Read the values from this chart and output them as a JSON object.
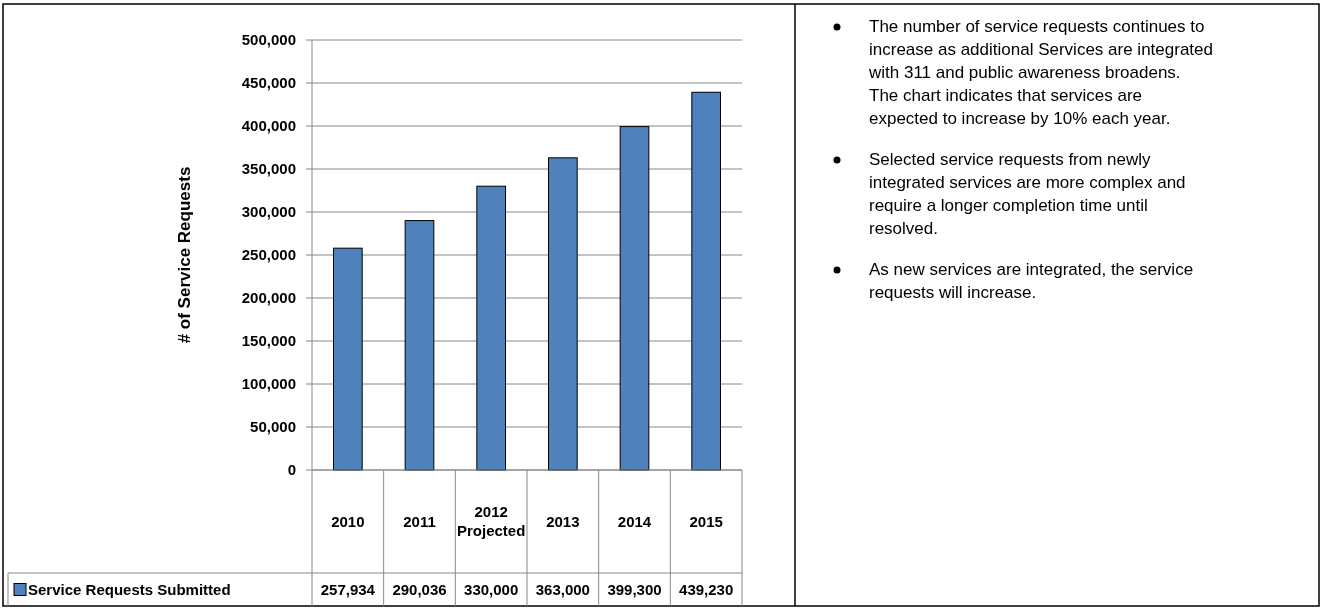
{
  "chart_data": [
    {
      "type": "bar",
      "ylabel": "# of Service Requests",
      "categories": [
        "2010",
        "2011",
        "2012 Projected",
        "2013",
        "2014",
        "2015"
      ],
      "series": [
        {
          "name": "Service Requests Submitted",
          "color": "#4f81bd",
          "values": [
            257934,
            290036,
            330000,
            363000,
            399300,
            439230
          ],
          "value_labels": [
            "257,934",
            "290,036",
            "330,000",
            "363,000",
            "399,300",
            "439,230"
          ]
        }
      ],
      "ylim": [
        0,
        500000
      ],
      "yticks": [
        {
          "value": 0,
          "label": "0"
        },
        {
          "value": 50000,
          "label": "50,000"
        },
        {
          "value": 100000,
          "label": "100,000"
        },
        {
          "value": 150000,
          "label": "150,000"
        },
        {
          "value": 200000,
          "label": "200,000"
        },
        {
          "value": 250000,
          "label": "250,000"
        },
        {
          "value": 300000,
          "label": "300,000"
        },
        {
          "value": 350000,
          "label": "350,000"
        },
        {
          "value": 400000,
          "label": "400,000"
        },
        {
          "value": 450000,
          "label": "450,000"
        },
        {
          "value": 500000,
          "label": "500,000"
        }
      ],
      "grid": "y",
      "legend": "bottom"
    },
    {
      "type": "other",
      "annotations": [
        "The number of service requests continues to increase as additional Services are integrated with 311 and public awareness broadens. The chart indicates that services are expected to increase by 10% each year.",
        "Selected service requests from newly integrated services are more complex and require a longer completion time until resolved.",
        "As new services are integrated, the service requests will increase."
      ]
    }
  ]
}
